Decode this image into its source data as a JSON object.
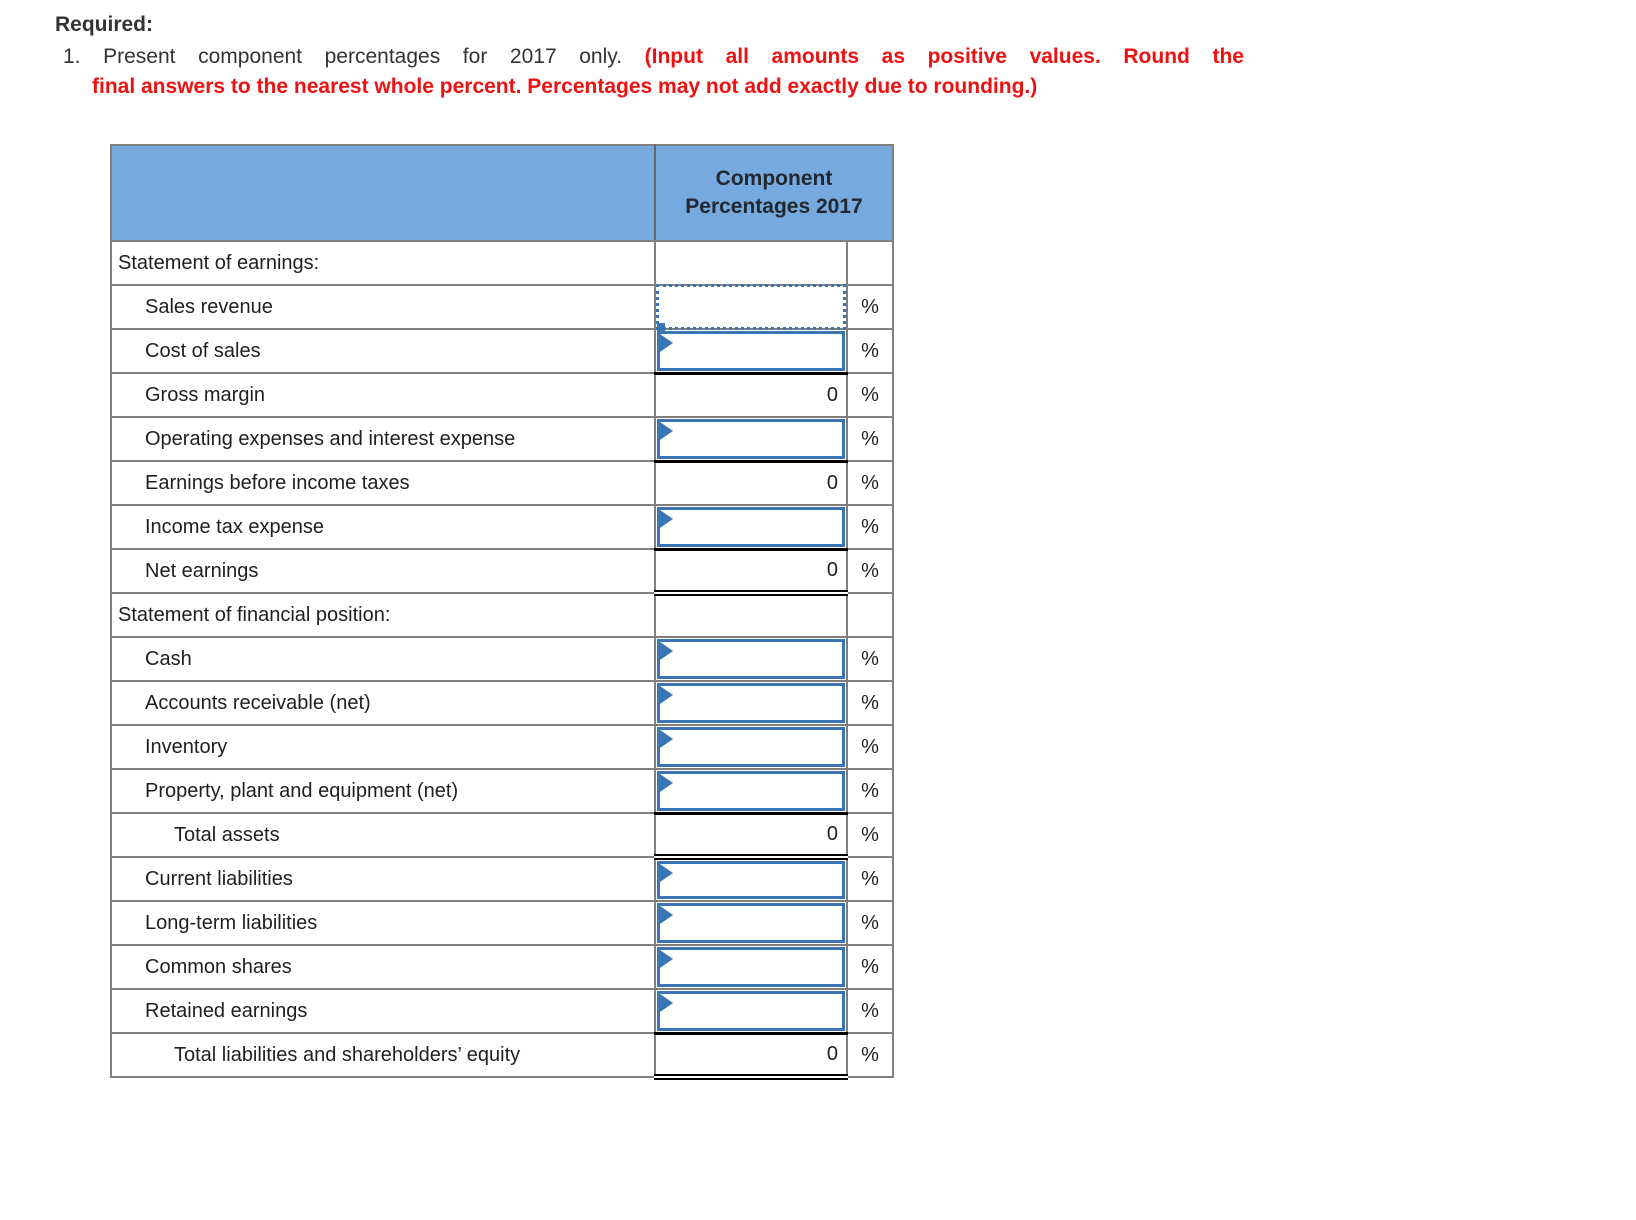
{
  "colors": {
    "header_blue": "#76aade",
    "grid_gray": "#7f7f7f",
    "header_divider": "#666666",
    "input_blue": "#3b76b4",
    "red_text": "#ee1111",
    "text_dark": "#333333",
    "table_text": "#1f1f1f",
    "header_text": "#222831",
    "black_line": "#000000"
  },
  "instructions": {
    "required_label": "Required:",
    "item_number": "1.",
    "text_black": "Present component percentages for 2017 only.",
    "text_red_line1": "(Input all amounts as positive values. Round the",
    "text_red_line2": "final answers to the nearest whole percent. Percentages may not add exactly due to rounding.)"
  },
  "table": {
    "column_header": "Component Percentages 2017",
    "percent_symbol": "%",
    "rows": [
      {
        "label": "Statement of earnings:",
        "indent": 0,
        "type": "section",
        "value": ""
      },
      {
        "label": "Sales revenue",
        "indent": 1,
        "type": "input",
        "active": true,
        "value": ""
      },
      {
        "label": "Cost of sales",
        "indent": 1,
        "type": "input",
        "black_bottom": true,
        "value": ""
      },
      {
        "label": "Gross margin",
        "indent": 1,
        "type": "computed",
        "value": "0"
      },
      {
        "label": "Operating expenses and interest expense",
        "indent": 1,
        "type": "input",
        "black_bottom": true,
        "value": ""
      },
      {
        "label": "Earnings before income taxes",
        "indent": 1,
        "type": "computed",
        "value": "0"
      },
      {
        "label": "Income tax expense",
        "indent": 1,
        "type": "input",
        "black_bottom": true,
        "value": ""
      },
      {
        "label": "Net earnings",
        "indent": 1,
        "type": "computed",
        "value": "0",
        "double_underline": true
      },
      {
        "label": "Statement of financial position:",
        "indent": 0,
        "type": "section",
        "value": ""
      },
      {
        "label": "Cash",
        "indent": 1,
        "type": "input",
        "value": ""
      },
      {
        "label": "Accounts receivable (net)",
        "indent": 1,
        "type": "input",
        "value": ""
      },
      {
        "label": "Inventory",
        "indent": 1,
        "type": "input",
        "value": ""
      },
      {
        "label": "Property, plant and equipment (net)",
        "indent": 1,
        "type": "input",
        "black_bottom": true,
        "value": ""
      },
      {
        "label": "Total assets",
        "indent": 2,
        "type": "computed",
        "value": "0",
        "double_underline": true
      },
      {
        "label": "Current liabilities",
        "indent": 1,
        "type": "input",
        "value": ""
      },
      {
        "label": "Long-term liabilities",
        "indent": 1,
        "type": "input",
        "value": ""
      },
      {
        "label": "Common shares",
        "indent": 1,
        "type": "input",
        "value": ""
      },
      {
        "label": "Retained earnings",
        "indent": 1,
        "type": "input",
        "black_bottom": true,
        "value": ""
      },
      {
        "label": "Total liabilities and shareholders’ equity",
        "indent": 2,
        "type": "computed",
        "value": "0",
        "double_underline": true
      }
    ]
  }
}
